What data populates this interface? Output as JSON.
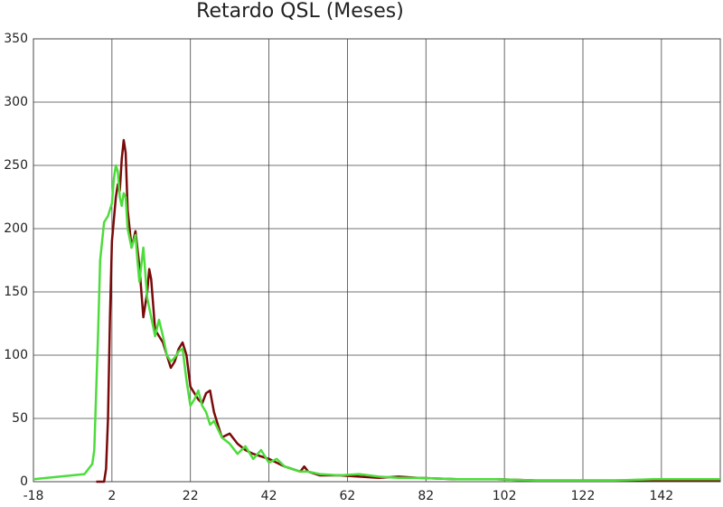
{
  "chart_data": {
    "type": "line",
    "title": "Retardo QSL (Meses)",
    "xlim": [
      -18,
      157
    ],
    "ylim": [
      0,
      350
    ],
    "xticks": [
      -18,
      2,
      22,
      42,
      62,
      82,
      102,
      122,
      142
    ],
    "yticks": [
      0,
      50,
      100,
      150,
      200,
      250,
      300,
      350
    ],
    "grid": true,
    "series": [
      {
        "color": "#7a0a0a",
        "x": [
          -2,
          0,
          0.5,
          1,
          1.5,
          2,
          3,
          3.5,
          4,
          4.5,
          5,
          5.5,
          6,
          7,
          8,
          9,
          10,
          11,
          11.5,
          12,
          13,
          14,
          15,
          16,
          17,
          18,
          19,
          20,
          21,
          22,
          23,
          24,
          25,
          26,
          27,
          28,
          30,
          32,
          34,
          36,
          38,
          40,
          42,
          44,
          46,
          48,
          50,
          51,
          52,
          55,
          60,
          65,
          70,
          75,
          80,
          90,
          100,
          110,
          120,
          130,
          140,
          150,
          157
        ],
        "values": [
          0,
          0,
          10,
          50,
          130,
          190,
          225,
          235,
          230,
          255,
          270,
          260,
          215,
          185,
          198,
          170,
          130,
          150,
          168,
          160,
          120,
          115,
          110,
          100,
          90,
          95,
          105,
          110,
          100,
          75,
          70,
          65,
          62,
          70,
          72,
          55,
          35,
          38,
          30,
          25,
          22,
          20,
          18,
          15,
          12,
          10,
          8,
          12,
          8,
          5,
          5,
          4,
          3,
          4,
          3,
          2,
          2,
          1,
          1,
          1,
          1,
          1,
          1
        ]
      },
      {
        "color": "#4ddc3c",
        "x": [
          -18,
          -5,
          -3,
          -2.5,
          -1.5,
          -1,
          0,
          1,
          2,
          2.5,
          3,
          3.5,
          4,
          4.5,
          5,
          5.5,
          6,
          7,
          8,
          8.5,
          9,
          10,
          11,
          12,
          13,
          14,
          15,
          16,
          17,
          18,
          19,
          20,
          21,
          22,
          23,
          24,
          25,
          26,
          27,
          28,
          30,
          32,
          34,
          36,
          38,
          40,
          42,
          44,
          46,
          48,
          50,
          52,
          55,
          60,
          65,
          70,
          75,
          80,
          90,
          100,
          110,
          120,
          130,
          140,
          150,
          157
        ],
        "values": [
          2,
          6,
          14,
          25,
          120,
          175,
          205,
          210,
          220,
          240,
          250,
          245,
          225,
          218,
          228,
          225,
          200,
          185,
          195,
          175,
          158,
          185,
          145,
          130,
          115,
          128,
          115,
          100,
          95,
          98,
          103,
          105,
          80,
          60,
          65,
          72,
          60,
          55,
          45,
          48,
          35,
          30,
          22,
          28,
          18,
          25,
          15,
          18,
          12,
          10,
          8,
          8,
          6,
          5,
          6,
          4,
          3,
          3,
          2,
          2,
          1,
          1,
          1,
          2,
          2,
          2
        ]
      }
    ]
  }
}
